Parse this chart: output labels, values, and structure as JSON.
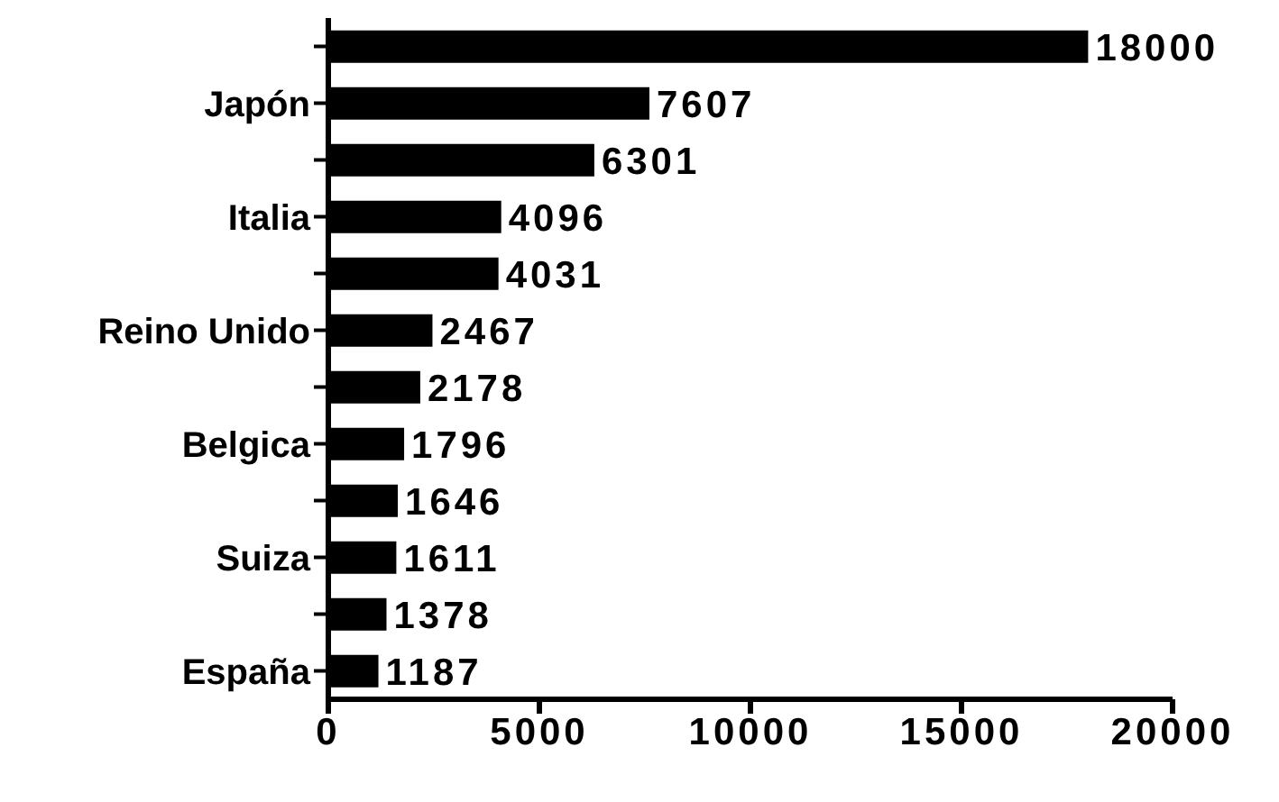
{
  "chart_data": {
    "type": "bar",
    "orientation": "horizontal",
    "categories": [
      null,
      "Japón",
      null,
      "Italia",
      null,
      "Reino Unido",
      null,
      "Belgica",
      null,
      "Suiza",
      null,
      "España"
    ],
    "values": [
      18000,
      7607,
      6301,
      4096,
      4031,
      2467,
      2178,
      1796,
      1646,
      1611,
      1378,
      1187
    ],
    "color": "#000000",
    "xlim": [
      0,
      20000
    ],
    "xticks": [
      0,
      5000,
      10000,
      15000,
      20000
    ],
    "data_labels": true,
    "grid": false
  }
}
